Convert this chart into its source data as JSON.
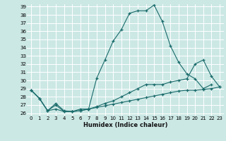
{
  "xlabel": "Humidex (Indice chaleur)",
  "bg_color": "#cce8e5",
  "line_color": "#1a6b6b",
  "grid_color": "#ffffff",
  "ylim": [
    26,
    39
  ],
  "xlim": [
    -0.5,
    23.5
  ],
  "yticks": [
    26,
    27,
    28,
    29,
    30,
    31,
    32,
    33,
    34,
    35,
    36,
    37,
    38,
    39
  ],
  "xticks": [
    0,
    1,
    2,
    3,
    4,
    5,
    6,
    7,
    8,
    9,
    10,
    11,
    12,
    13,
    14,
    15,
    16,
    17,
    18,
    19,
    20,
    21,
    22,
    23
  ],
  "line1_x": [
    0,
    1,
    2,
    3,
    4,
    5,
    6,
    7,
    8,
    9,
    10,
    11,
    12,
    13,
    14,
    15,
    16,
    17,
    18,
    19,
    20,
    21,
    22
  ],
  "line1_y": [
    28.8,
    27.8,
    26.3,
    27.2,
    26.3,
    26.2,
    26.3,
    26.5,
    30.3,
    32.5,
    34.8,
    36.2,
    38.2,
    38.5,
    38.5,
    39.2,
    37.2,
    34.2,
    32.2,
    30.8,
    30.2,
    29.0,
    29.5
  ],
  "line2_x": [
    0,
    1,
    2,
    3,
    4,
    5,
    6,
    7,
    8,
    9,
    10,
    11,
    12,
    13,
    14,
    15,
    16,
    17,
    18,
    19,
    20,
    21,
    22,
    23
  ],
  "line2_y": [
    28.8,
    27.8,
    26.3,
    27.0,
    26.2,
    26.2,
    26.5,
    26.5,
    26.8,
    27.2,
    27.5,
    28.0,
    28.5,
    29.0,
    29.5,
    29.5,
    29.5,
    29.8,
    30.0,
    30.2,
    32.0,
    32.5,
    30.5,
    29.2
  ],
  "line3_x": [
    0,
    1,
    2,
    3,
    4,
    5,
    6,
    7,
    8,
    9,
    10,
    11,
    12,
    13,
    14,
    15,
    16,
    17,
    18,
    19,
    20,
    21,
    22,
    23
  ],
  "line3_y": [
    28.8,
    27.8,
    26.3,
    26.5,
    26.2,
    26.2,
    26.3,
    26.5,
    26.7,
    26.9,
    27.1,
    27.3,
    27.5,
    27.7,
    27.9,
    28.1,
    28.3,
    28.5,
    28.7,
    28.8,
    28.8,
    28.9,
    29.0,
    29.2
  ]
}
